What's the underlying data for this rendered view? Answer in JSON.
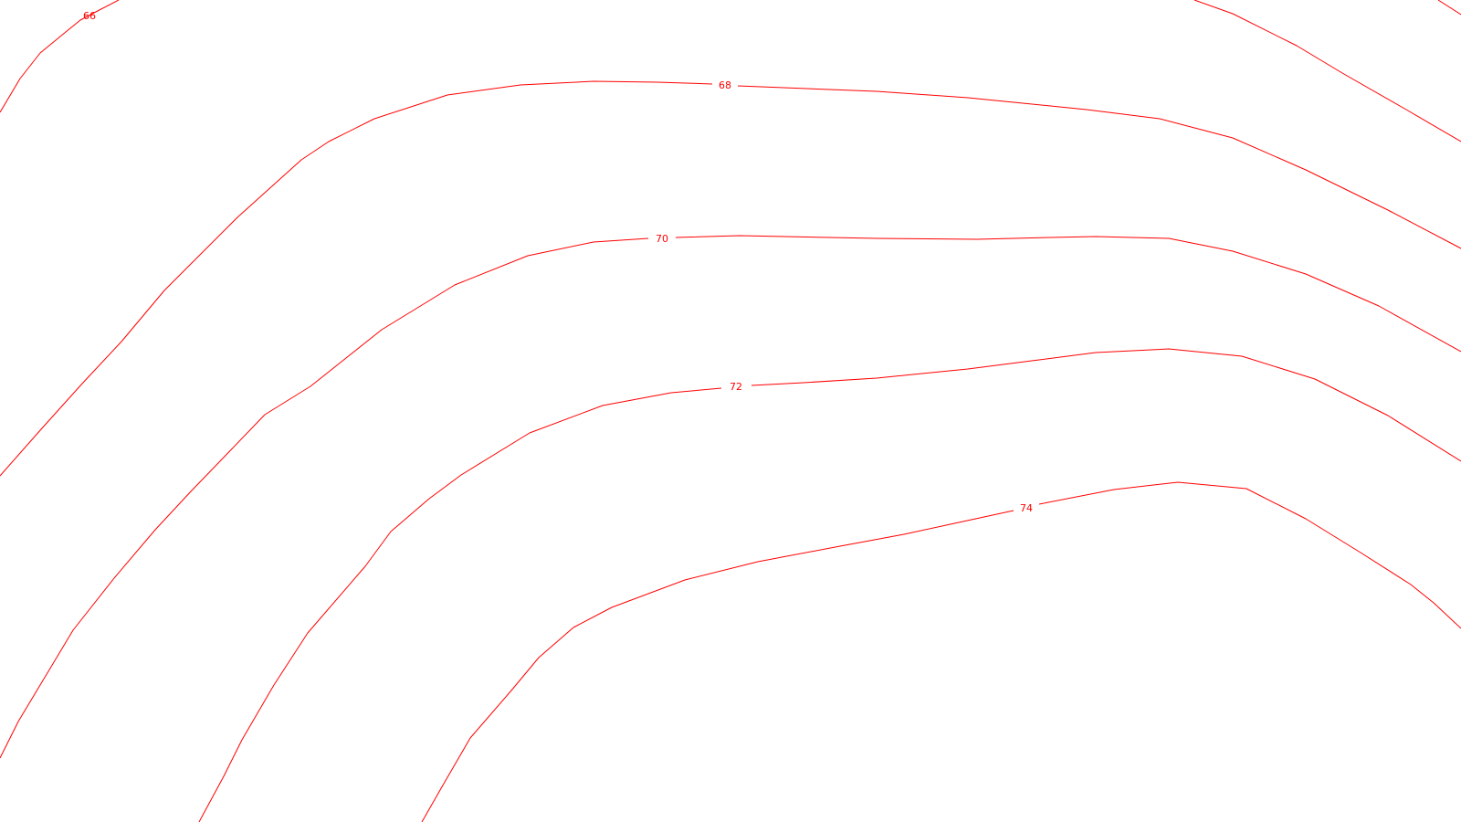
{
  "map": {
    "line_color": "#ff0000",
    "background_color": "#ffffff",
    "contours": [
      {
        "id": "66",
        "label": "66"
      },
      {
        "id": "68",
        "label": "68"
      },
      {
        "id": "70",
        "label": "70"
      },
      {
        "id": "72",
        "label": "72"
      },
      {
        "id": "74",
        "label": "74"
      }
    ]
  }
}
